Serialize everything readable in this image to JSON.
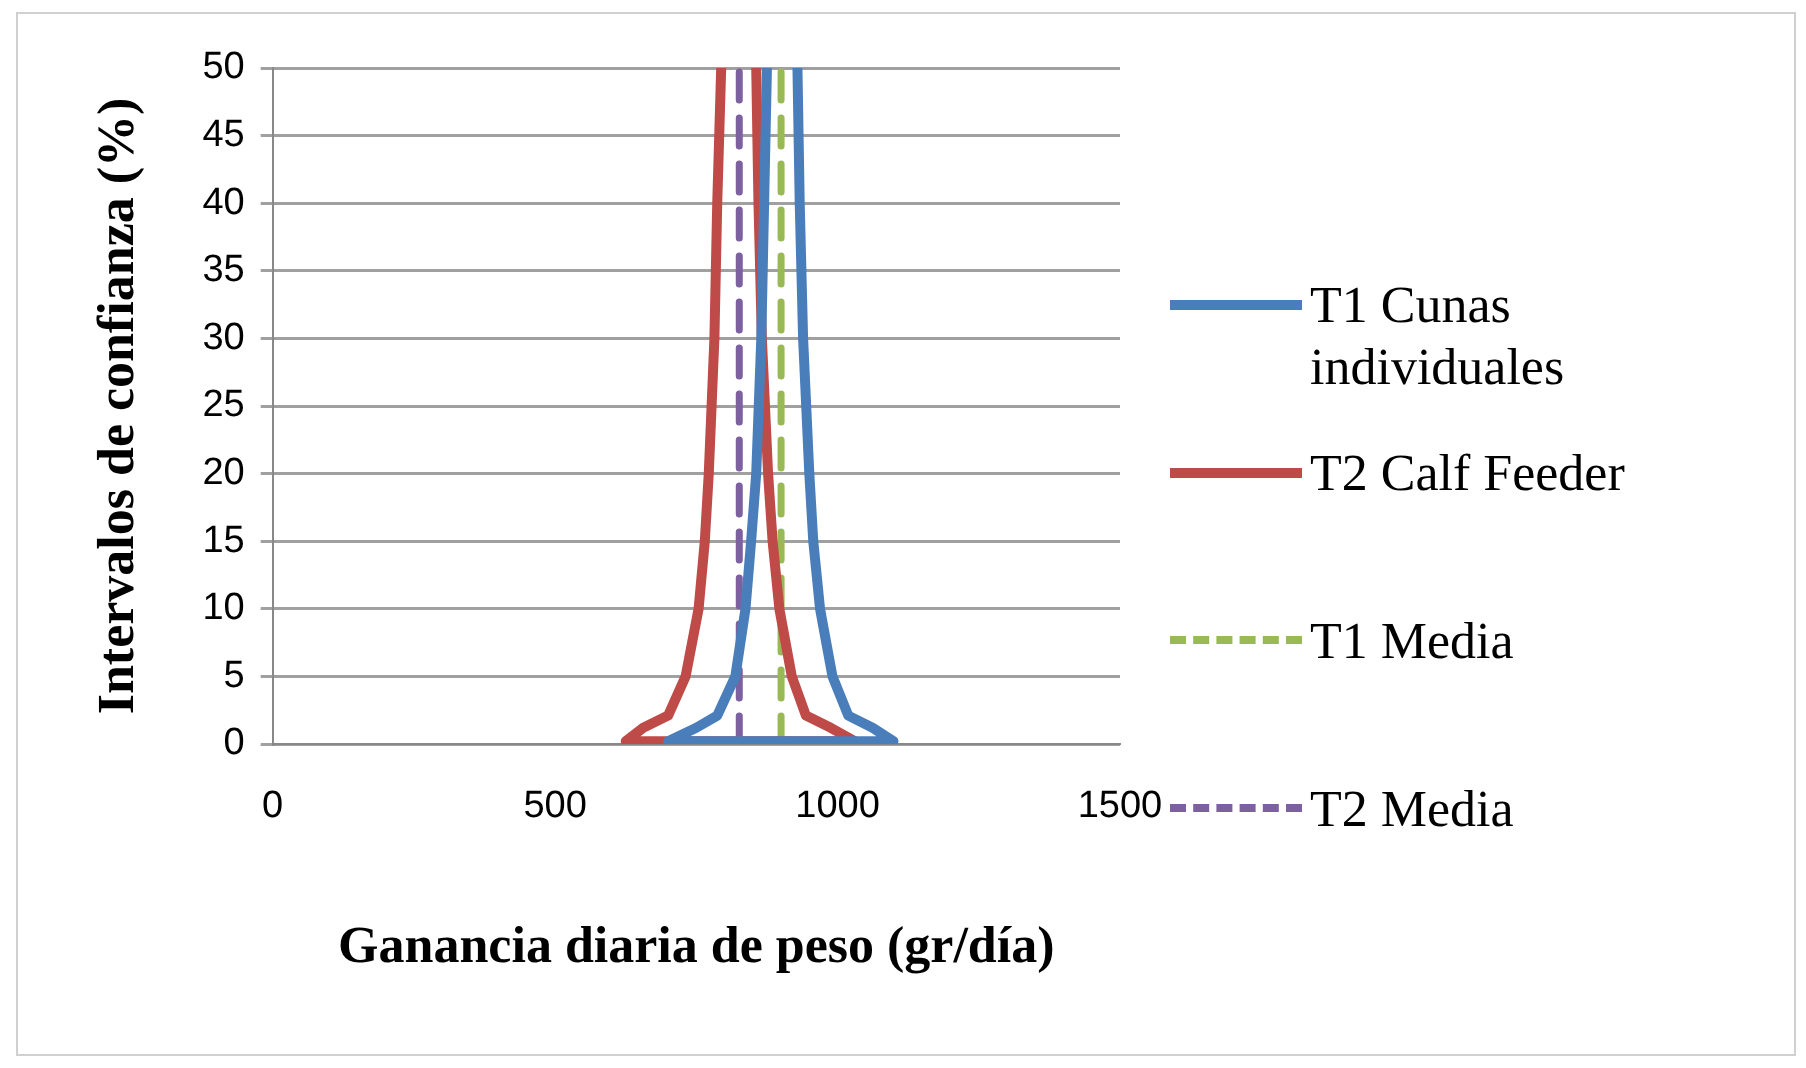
{
  "chart_data": {
    "type": "line",
    "xlabel": "Ganancia diaria de peso (gr/día)",
    "ylabel": "Intervalos de confianza (%)",
    "xlim": [
      0,
      1500
    ],
    "xticks": [
      0,
      500,
      1000,
      1500
    ],
    "ylim": [
      0,
      50
    ],
    "yticks": [
      0,
      5,
      10,
      15,
      20,
      25,
      30,
      35,
      40,
      45,
      50
    ],
    "grid": "y",
    "legend": "right",
    "marker": "none",
    "series": [
      {
        "name": "T1 Cunas individuales",
        "color": "#4a7ebb",
        "line_style": "solid",
        "x": [
          929,
          933,
          939,
          950,
          957,
          969,
          991,
          1019,
          1062,
          1099,
          700,
          750,
          787,
          819,
          837,
          847,
          856,
          865,
          870,
          875
        ],
        "values": [
          50,
          40,
          30,
          20,
          15,
          10,
          5,
          2.1,
          1.2,
          0.2,
          0.2,
          1.2,
          2.1,
          5,
          10,
          15,
          20,
          30,
          40,
          50
        ]
      },
      {
        "name": "T2 Calf Feeder",
        "color": "#be4b48",
        "line_style": "solid",
        "x": [
          856,
          860,
          866,
          877,
          885,
          897,
          919,
          944,
          988,
          1031,
          625,
          656,
          700,
          731,
          754,
          765,
          772,
          782,
          787,
          794
        ],
        "values": [
          50,
          40,
          30,
          20,
          15,
          10,
          5,
          2.1,
          1.2,
          0.2,
          0.2,
          1.2,
          2.1,
          5,
          10,
          15,
          20,
          30,
          40,
          50
        ]
      },
      {
        "name": "T1 Media",
        "color": "#98b954",
        "line_style": "dashed",
        "x": [
          900,
          900
        ],
        "values": [
          0,
          50
        ]
      },
      {
        "name": "T2 Media",
        "color": "#7d60a0",
        "line_style": "dashed",
        "x": [
          826,
          826
        ],
        "values": [
          0,
          50
        ]
      }
    ]
  }
}
